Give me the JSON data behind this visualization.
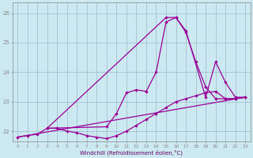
{
  "xlabel": "Windchill (Refroidissement éolien,°C)",
  "bg_color": "#cce8f0",
  "line_color": "#990099",
  "grid_color": "#99bbcc",
  "xmin": -0.5,
  "xmax": 23.5,
  "ymin": 21.65,
  "ymax": 26.35,
  "yticks": [
    22,
    23,
    24,
    25,
    26
  ],
  "xticks": [
    0,
    1,
    2,
    3,
    4,
    5,
    6,
    7,
    8,
    9,
    10,
    11,
    12,
    13,
    14,
    15,
    16,
    17,
    18,
    19,
    20,
    21,
    22,
    23
  ],
  "line1_x": [
    0,
    1,
    2,
    3,
    4,
    5,
    6,
    7,
    8,
    9,
    10,
    11,
    12,
    13,
    14,
    15,
    16,
    17,
    18,
    19,
    20,
    21,
    22,
    23
  ],
  "line1_y": [
    21.8,
    21.85,
    21.9,
    22.1,
    22.1,
    22.0,
    21.95,
    21.85,
    21.8,
    21.75,
    21.85,
    22.0,
    22.2,
    22.4,
    22.6,
    22.8,
    23.0,
    23.1,
    23.2,
    23.3,
    23.35,
    23.1,
    23.1,
    23.15
  ],
  "line2_x": [
    0,
    23
  ],
  "line2_y": [
    21.8,
    23.15
  ],
  "line3_x": [
    3,
    9,
    10,
    11,
    12,
    13,
    14,
    15,
    16,
    17,
    18,
    19,
    20,
    21,
    22,
    23
  ],
  "line3_y": [
    22.1,
    22.15,
    22.6,
    23.3,
    23.4,
    23.35,
    24.0,
    25.7,
    25.85,
    25.35,
    24.35,
    23.5,
    23.1,
    23.1,
    23.1,
    23.15
  ],
  "line4_x": [
    3,
    15,
    16,
    17,
    19,
    20,
    21,
    22,
    23
  ],
  "line4_y": [
    22.1,
    25.85,
    25.85,
    25.4,
    23.15,
    24.35,
    23.65,
    23.15,
    23.15
  ]
}
